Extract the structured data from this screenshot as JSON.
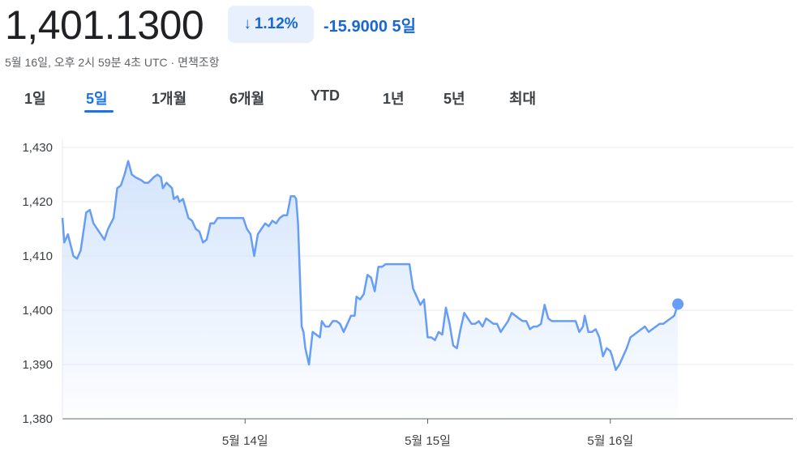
{
  "header": {
    "price": "1,401.1300",
    "change_percent": "1.12%",
    "change_abs": "-15.9000",
    "change_period": "5일",
    "timestamp": "5월 16일, 오후 2시 59분 4초 UTC · 면책조항",
    "down_arrow": "↓",
    "accent_color": "#1a73e8"
  },
  "tabs": [
    {
      "label": "1일",
      "active": false
    },
    {
      "label": "5일",
      "active": true
    },
    {
      "label": "1개월",
      "active": false
    },
    {
      "label": "6개월",
      "active": false
    },
    {
      "label": "YTD",
      "active": false
    },
    {
      "label": "1년",
      "active": false
    },
    {
      "label": "5년",
      "active": false
    },
    {
      "label": "최대",
      "active": false
    }
  ],
  "chart_data": {
    "type": "area",
    "ylim": [
      1380,
      1430
    ],
    "yticks": [
      1380,
      1390,
      1400,
      1410,
      1420,
      1430
    ],
    "ytick_labels": [
      "1,380",
      "1,390",
      "1,400",
      "1,410",
      "1,420",
      "1,430"
    ],
    "x_tick_labels": [
      "5월 14일",
      "5월 15일",
      "5월 16일"
    ],
    "x_tick_positions": [
      1,
      2,
      3
    ],
    "xlim": [
      0,
      4
    ],
    "grid": true,
    "line_color": "#669df6",
    "series": [
      {
        "values": [
          [
            0.0,
            1417
          ],
          [
            0.01,
            1412.5
          ],
          [
            0.03,
            1414
          ],
          [
            0.06,
            1410
          ],
          [
            0.08,
            1409.5
          ],
          [
            0.1,
            1411
          ],
          [
            0.13,
            1418
          ],
          [
            0.15,
            1418.5
          ],
          [
            0.17,
            1416
          ],
          [
            0.21,
            1414
          ],
          [
            0.23,
            1413
          ],
          [
            0.25,
            1415
          ],
          [
            0.28,
            1417
          ],
          [
            0.3,
            1422.5
          ],
          [
            0.32,
            1423
          ],
          [
            0.34,
            1425
          ],
          [
            0.36,
            1427.5
          ],
          [
            0.38,
            1425
          ],
          [
            0.4,
            1424.5
          ],
          [
            0.43,
            1424
          ],
          [
            0.45,
            1423.5
          ],
          [
            0.47,
            1423.5
          ],
          [
            0.5,
            1424.5
          ],
          [
            0.52,
            1425
          ],
          [
            0.54,
            1424.5
          ],
          [
            0.55,
            1422.5
          ],
          [
            0.57,
            1423.5
          ],
          [
            0.6,
            1422.5
          ],
          [
            0.61,
            1420.5
          ],
          [
            0.63,
            1421
          ],
          [
            0.64,
            1420
          ],
          [
            0.66,
            1420.5
          ],
          [
            0.69,
            1417
          ],
          [
            0.71,
            1416.5
          ],
          [
            0.73,
            1415
          ],
          [
            0.75,
            1414.5
          ],
          [
            0.77,
            1412.5
          ],
          [
            0.79,
            1413
          ],
          [
            0.81,
            1416
          ],
          [
            0.83,
            1416
          ],
          [
            0.85,
            1417
          ],
          [
            0.87,
            1417
          ],
          [
            0.9,
            1417
          ],
          [
            0.93,
            1417
          ],
          [
            0.96,
            1417
          ],
          [
            0.99,
            1417
          ],
          [
            1.01,
            1415
          ],
          [
            1.03,
            1414
          ],
          [
            1.05,
            1410
          ],
          [
            1.07,
            1414
          ],
          [
            1.09,
            1415
          ],
          [
            1.11,
            1416
          ],
          [
            1.13,
            1415.5
          ],
          [
            1.15,
            1416.5
          ],
          [
            1.17,
            1416
          ],
          [
            1.19,
            1417
          ],
          [
            1.21,
            1417.5
          ],
          [
            1.23,
            1417.5
          ],
          [
            1.25,
            1421
          ],
          [
            1.27,
            1421
          ],
          [
            1.28,
            1420.5
          ],
          [
            1.29,
            1416
          ],
          [
            1.31,
            1397
          ],
          [
            1.32,
            1396
          ],
          [
            1.33,
            1393
          ],
          [
            1.35,
            1390
          ],
          [
            1.37,
            1396
          ],
          [
            1.39,
            1395.5
          ],
          [
            1.41,
            1395
          ],
          [
            1.42,
            1398
          ],
          [
            1.44,
            1397
          ],
          [
            1.46,
            1397
          ],
          [
            1.48,
            1398
          ],
          [
            1.5,
            1398
          ],
          [
            1.52,
            1397.5
          ],
          [
            1.54,
            1396
          ],
          [
            1.56,
            1397.5
          ],
          [
            1.58,
            1399
          ],
          [
            1.6,
            1399
          ],
          [
            1.61,
            1402.5
          ],
          [
            1.63,
            1402
          ],
          [
            1.65,
            1403
          ],
          [
            1.67,
            1406.5
          ],
          [
            1.69,
            1406
          ],
          [
            1.71,
            1403.5
          ],
          [
            1.73,
            1408
          ],
          [
            1.75,
            1408
          ],
          [
            1.77,
            1408.5
          ],
          [
            1.8,
            1408.5
          ],
          [
            1.83,
            1408.5
          ],
          [
            1.86,
            1408.5
          ],
          [
            1.9,
            1408.5
          ],
          [
            1.92,
            1404
          ],
          [
            1.94,
            1402.5
          ],
          [
            1.96,
            1401
          ],
          [
            1.98,
            1402
          ],
          [
            2.0,
            1395
          ],
          [
            2.02,
            1395
          ],
          [
            2.04,
            1394.5
          ],
          [
            2.06,
            1396
          ],
          [
            2.08,
            1395.5
          ],
          [
            2.1,
            1400.5
          ],
          [
            2.12,
            1397.5
          ],
          [
            2.14,
            1393.5
          ],
          [
            2.16,
            1393
          ],
          [
            2.18,
            1396.5
          ],
          [
            2.2,
            1399.5
          ],
          [
            2.22,
            1398.5
          ],
          [
            2.24,
            1397.5
          ],
          [
            2.26,
            1397.5
          ],
          [
            2.28,
            1398
          ],
          [
            2.3,
            1397
          ],
          [
            2.32,
            1398.5
          ],
          [
            2.34,
            1398
          ],
          [
            2.36,
            1397.5
          ],
          [
            2.38,
            1397.5
          ],
          [
            2.4,
            1396
          ],
          [
            2.42,
            1397
          ],
          [
            2.44,
            1398
          ],
          [
            2.46,
            1399.5
          ],
          [
            2.48,
            1399
          ],
          [
            2.5,
            1398.5
          ],
          [
            2.52,
            1398
          ],
          [
            2.54,
            1398
          ],
          [
            2.56,
            1396.5
          ],
          [
            2.58,
            1397
          ],
          [
            2.6,
            1397
          ],
          [
            2.62,
            1397.5
          ],
          [
            2.64,
            1401
          ],
          [
            2.66,
            1398.5
          ],
          [
            2.68,
            1398
          ],
          [
            2.7,
            1398
          ],
          [
            2.73,
            1398
          ],
          [
            2.76,
            1398
          ],
          [
            2.79,
            1398
          ],
          [
            2.81,
            1398
          ],
          [
            2.83,
            1396
          ],
          [
            2.85,
            1397
          ],
          [
            2.86,
            1399
          ],
          [
            2.88,
            1396
          ],
          [
            2.9,
            1396
          ],
          [
            2.92,
            1396.5
          ],
          [
            2.94,
            1395
          ],
          [
            2.96,
            1391.5
          ],
          [
            2.98,
            1393
          ],
          [
            3.0,
            1392.5
          ],
          [
            3.01,
            1391.5
          ],
          [
            3.03,
            1389
          ],
          [
            3.05,
            1390
          ],
          [
            3.07,
            1391.5
          ],
          [
            3.09,
            1393
          ],
          [
            3.11,
            1395
          ],
          [
            3.13,
            1395.5
          ],
          [
            3.15,
            1396
          ],
          [
            3.17,
            1396.5
          ],
          [
            3.19,
            1397
          ],
          [
            3.21,
            1396
          ],
          [
            3.23,
            1396.5
          ],
          [
            3.25,
            1397
          ],
          [
            3.27,
            1397.5
          ],
          [
            3.29,
            1397.5
          ],
          [
            3.31,
            1398
          ],
          [
            3.33,
            1398.5
          ],
          [
            3.35,
            1399
          ],
          [
            3.37,
            1401.13
          ]
        ]
      }
    ]
  }
}
